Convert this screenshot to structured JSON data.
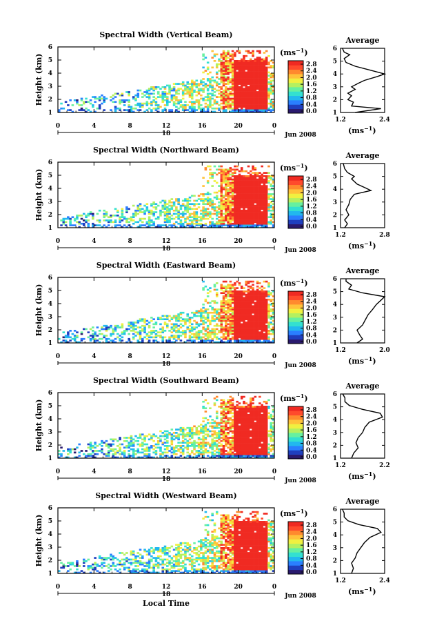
{
  "figure": {
    "xlabel_bottom": "Local Time",
    "colorbar_unit_base": "(ms",
    "colorbar_unit_exp": "−1",
    "colorbar_unit_close": ")",
    "avg_unit_base": "(ms",
    "avg_unit_exp": "−1",
    "avg_unit_close": ")",
    "avg_title": "Average",
    "date_label": "Jun 2008",
    "day_label": "18",
    "colormap": [
      "#2a1a6e",
      "#1f3fbf",
      "#2a7fff",
      "#22b8ee",
      "#33e0d0",
      "#66f0a0",
      "#b4f060",
      "#f0f040",
      "#ffc23a",
      "#ff8a2e",
      "#ff4a2c",
      "#f02a22"
    ]
  },
  "chart_data": [
    {
      "type": "heatmap",
      "title": "Spectral Width (Vertical Beam)",
      "ylabel": "Height (km)",
      "x_ticks": [
        "0",
        "4",
        "8",
        "12",
        "16",
        "20",
        "0"
      ],
      "y_ticks": [
        "1",
        "2",
        "3",
        "4",
        "5",
        "6"
      ],
      "xlim": [
        0,
        24
      ],
      "ylim": [
        1,
        6
      ],
      "colorbar_ticks": [
        "0.0",
        "0.4",
        "0.8",
        "1.2",
        "1.6",
        "2.0",
        "2.4",
        "2.8"
      ],
      "colorbar_range": [
        0.0,
        2.8
      ],
      "avg_x_ticks": [
        "1.2",
        "2.4"
      ],
      "avg_xlim": [
        1.2,
        2.4
      ],
      "profile": [
        [
          1.0,
          1.6
        ],
        [
          1.3,
          2.3
        ],
        [
          1.5,
          1.5
        ],
        [
          1.8,
          1.55
        ],
        [
          2.0,
          1.4
        ],
        [
          2.3,
          1.5
        ],
        [
          2.5,
          1.4
        ],
        [
          2.8,
          1.6
        ],
        [
          3.0,
          1.5
        ],
        [
          3.3,
          1.7
        ],
        [
          3.5,
          1.85
        ],
        [
          3.8,
          2.2
        ],
        [
          4.0,
          2.4
        ],
        [
          4.3,
          2.0
        ],
        [
          4.6,
          1.6
        ],
        [
          4.9,
          1.35
        ],
        [
          5.2,
          1.3
        ],
        [
          5.5,
          1.45
        ],
        [
          5.7,
          1.3
        ],
        [
          6.0,
          1.25
        ]
      ]
    },
    {
      "type": "heatmap",
      "title": "Spectral Width (Northward Beam)",
      "ylabel": "Height (km)",
      "x_ticks": [
        "0",
        "4",
        "8",
        "12",
        "16",
        "20",
        "0"
      ],
      "y_ticks": [
        "1",
        "2",
        "3",
        "4",
        "5",
        "6"
      ],
      "xlim": [
        0,
        24
      ],
      "ylim": [
        1,
        6
      ],
      "colorbar_ticks": [
        "0.0",
        "0.4",
        "0.8",
        "1.2",
        "1.6",
        "2.0",
        "2.4",
        "2.8"
      ],
      "colorbar_range": [
        0.0,
        2.8
      ],
      "avg_x_ticks": [
        "1.2",
        "2.8"
      ],
      "avg_xlim": [
        1.2,
        2.8
      ],
      "profile": [
        [
          1.0,
          1.35
        ],
        [
          1.3,
          1.45
        ],
        [
          1.6,
          1.35
        ],
        [
          2.0,
          1.5
        ],
        [
          2.4,
          1.4
        ],
        [
          2.8,
          1.5
        ],
        [
          3.2,
          1.55
        ],
        [
          3.6,
          1.7
        ],
        [
          3.9,
          2.3
        ],
        [
          4.1,
          2.1
        ],
        [
          4.4,
          1.8
        ],
        [
          4.8,
          1.6
        ],
        [
          5.0,
          1.7
        ],
        [
          5.3,
          1.45
        ],
        [
          5.6,
          1.35
        ],
        [
          6.0,
          1.3
        ]
      ]
    },
    {
      "type": "heatmap",
      "title": "Spectral Width (Eastward Beam)",
      "ylabel": "Height (km)",
      "x_ticks": [
        "0",
        "4",
        "8",
        "12",
        "16",
        "20",
        "0"
      ],
      "y_ticks": [
        "1",
        "2",
        "3",
        "4",
        "5",
        "6"
      ],
      "xlim": [
        0,
        24
      ],
      "ylim": [
        1,
        6
      ],
      "colorbar_ticks": [
        "0.0",
        "0.4",
        "0.8",
        "1.2",
        "1.6",
        "2.0",
        "2.4",
        "2.8"
      ],
      "colorbar_range": [
        0.0,
        2.8
      ],
      "avg_x_ticks": [
        "1.2",
        "2.0"
      ],
      "avg_xlim": [
        1.2,
        2.0
      ],
      "profile": [
        [
          1.0,
          1.5
        ],
        [
          1.3,
          1.6
        ],
        [
          1.6,
          1.55
        ],
        [
          2.0,
          1.5
        ],
        [
          2.4,
          1.6
        ],
        [
          2.8,
          1.65
        ],
        [
          3.2,
          1.7
        ],
        [
          3.6,
          1.78
        ],
        [
          4.0,
          1.85
        ],
        [
          4.4,
          1.95
        ],
        [
          4.6,
          2.0
        ],
        [
          4.9,
          1.6
        ],
        [
          5.2,
          1.35
        ],
        [
          5.5,
          1.4
        ],
        [
          5.8,
          1.3
        ],
        [
          6.0,
          1.3
        ]
      ]
    },
    {
      "type": "heatmap",
      "title": "Spectral Width (Southward Beam)",
      "ylabel": "Height (km)",
      "x_ticks": [
        "0",
        "4",
        "8",
        "12",
        "16",
        "20",
        "0"
      ],
      "y_ticks": [
        "1",
        "2",
        "3",
        "4",
        "5",
        "6"
      ],
      "xlim": [
        0,
        24
      ],
      "ylim": [
        1,
        6
      ],
      "colorbar_ticks": [
        "0.0",
        "0.4",
        "0.8",
        "1.2",
        "1.6",
        "2.0",
        "2.4",
        "2.8"
      ],
      "colorbar_range": [
        0.0,
        2.8
      ],
      "avg_x_ticks": [
        "1.2",
        "2.2"
      ],
      "avg_xlim": [
        1.2,
        2.2
      ],
      "profile": [
        [
          1.0,
          1.45
        ],
        [
          1.4,
          1.5
        ],
        [
          1.8,
          1.6
        ],
        [
          2.2,
          1.55
        ],
        [
          2.6,
          1.6
        ],
        [
          3.0,
          1.7
        ],
        [
          3.4,
          1.75
        ],
        [
          3.8,
          1.85
        ],
        [
          4.2,
          2.15
        ],
        [
          4.5,
          2.1
        ],
        [
          4.8,
          1.7
        ],
        [
          5.1,
          1.4
        ],
        [
          5.4,
          1.3
        ],
        [
          5.7,
          1.3
        ],
        [
          6.0,
          1.25
        ]
      ]
    },
    {
      "type": "heatmap",
      "title": "Spectral Width (Westward Beam)",
      "ylabel": "Height (km)",
      "x_ticks": [
        "0",
        "4",
        "8",
        "12",
        "16",
        "20",
        "0"
      ],
      "y_ticks": [
        "1",
        "2",
        "3",
        "4",
        "5",
        "6"
      ],
      "xlim": [
        0,
        24
      ],
      "ylim": [
        1,
        6
      ],
      "colorbar_ticks": [
        "0.0",
        "0.4",
        "0.8",
        "1.2",
        "1.6",
        "2.0",
        "2.4",
        "2.8"
      ],
      "colorbar_range": [
        0.0,
        2.8
      ],
      "avg_x_ticks": [
        "1.2",
        "2.4"
      ],
      "avg_xlim": [
        1.2,
        2.4
      ],
      "profile": [
        [
          1.0,
          1.5
        ],
        [
          1.4,
          1.55
        ],
        [
          1.8,
          1.5
        ],
        [
          2.2,
          1.6
        ],
        [
          2.6,
          1.65
        ],
        [
          3.0,
          1.75
        ],
        [
          3.4,
          1.85
        ],
        [
          3.8,
          2.0
        ],
        [
          4.2,
          2.3
        ],
        [
          4.5,
          2.2
        ],
        [
          4.8,
          1.7
        ],
        [
          5.1,
          1.4
        ],
        [
          5.4,
          1.3
        ],
        [
          5.7,
          1.3
        ],
        [
          6.0,
          1.25
        ]
      ]
    }
  ]
}
